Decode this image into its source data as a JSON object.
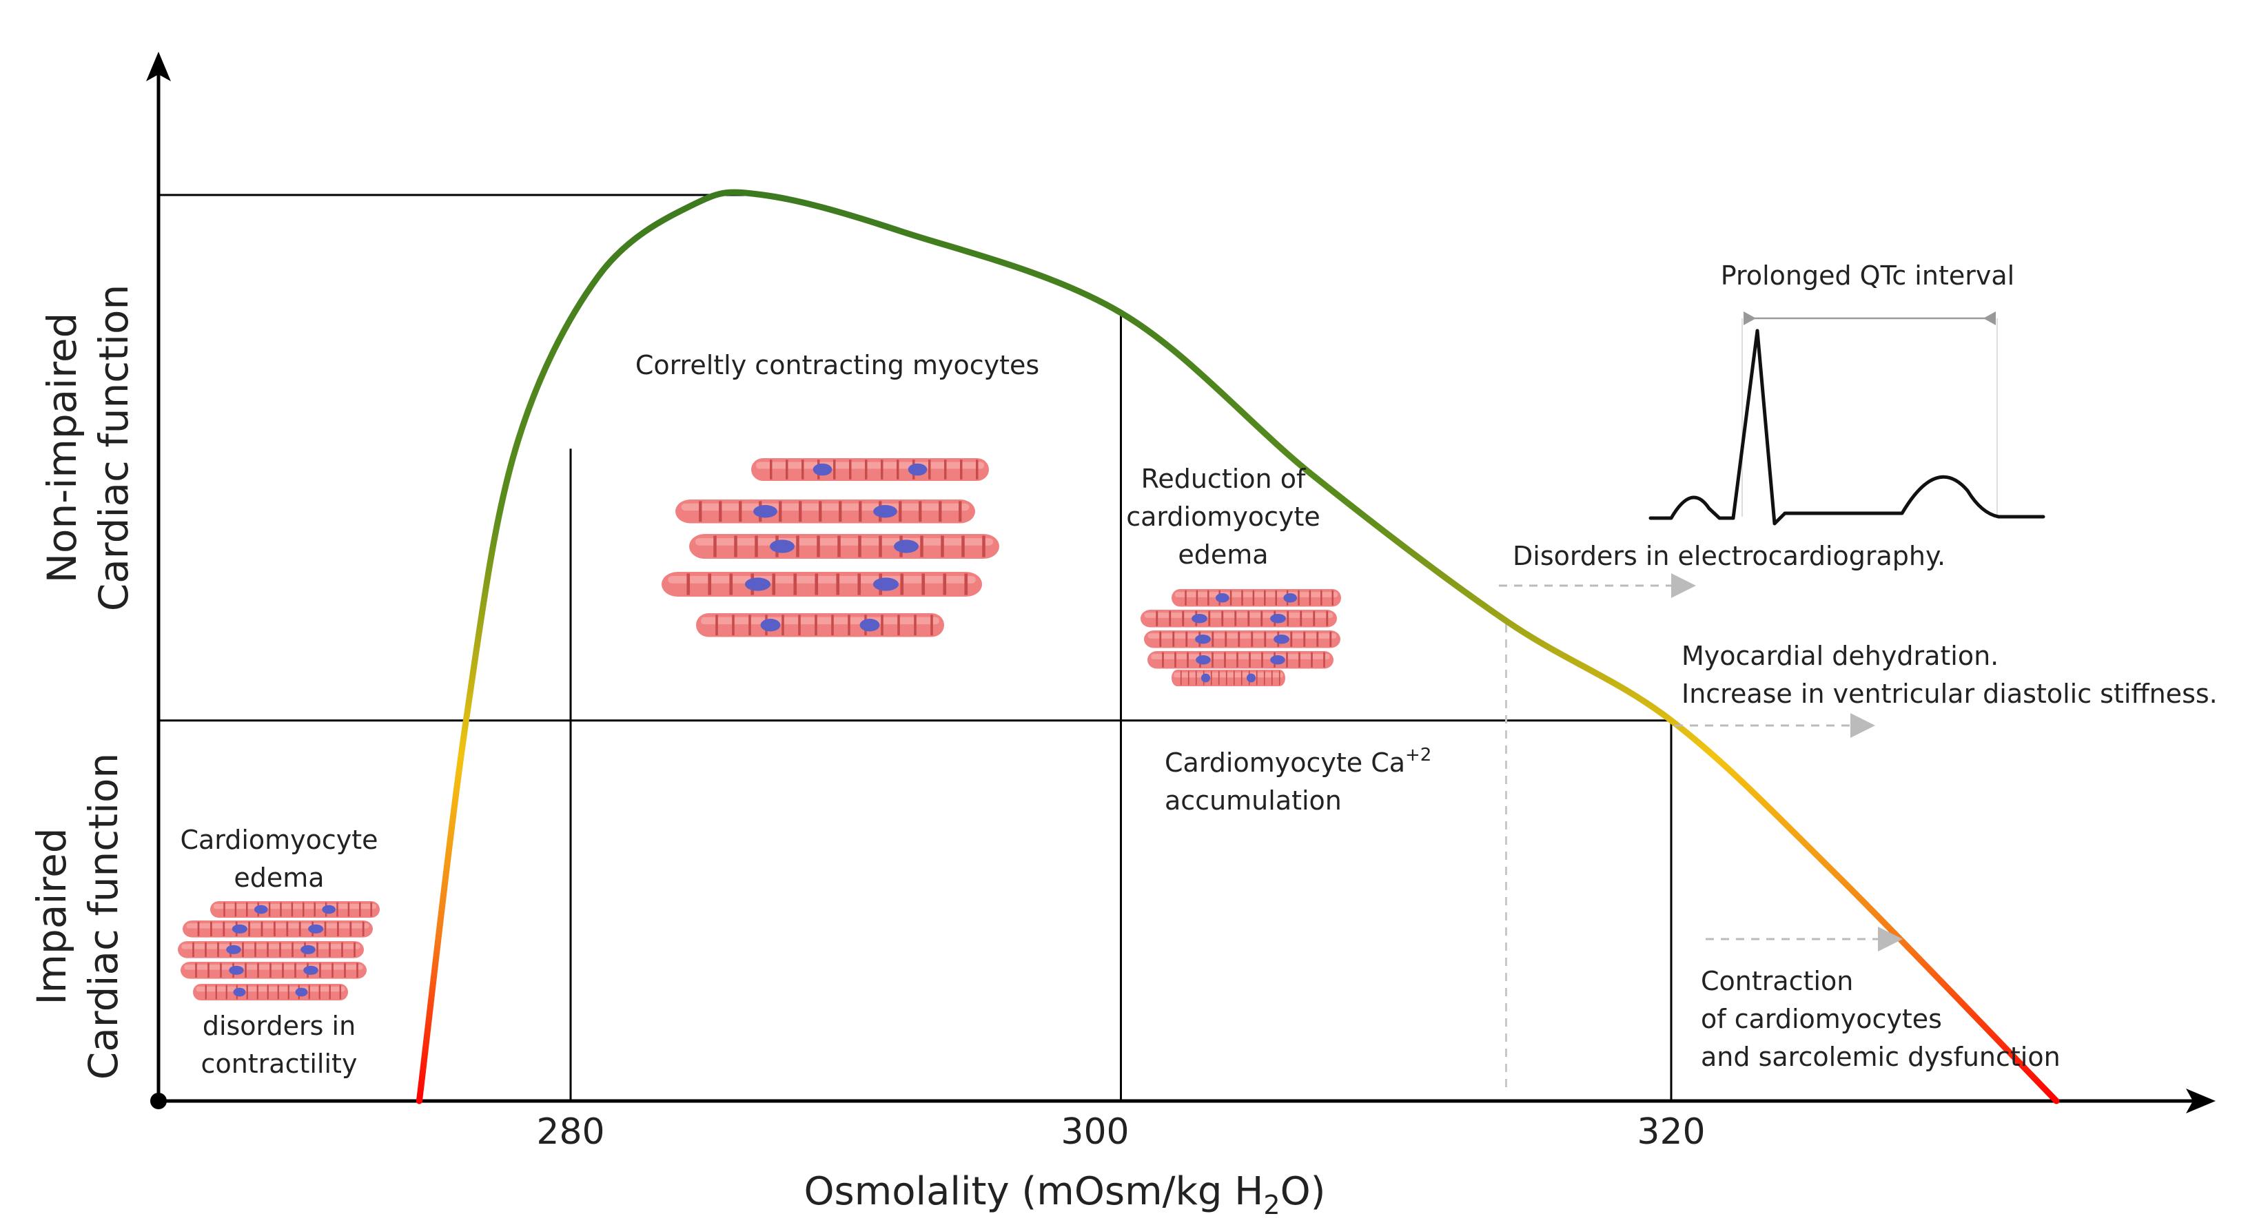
{
  "chart_data": {
    "type": "line",
    "title": "",
    "xlabel": "Osmolality (mOsm/kg H",
    "xlabel_subscript": "2",
    "xlabel_tail": "O)",
    "x_ticks": [
      "280",
      "300",
      "320"
    ],
    "y_labels": {
      "upper_line1": "Non-impaired",
      "upper_line2": "Cardiac function",
      "lower_line1": "Impaired",
      "lower_line2": "Cardiac function"
    },
    "curve_points": [
      {
        "x": 274.5,
        "y": 0.0
      },
      {
        "x": 276.2,
        "y": 0.42
      },
      {
        "x": 278.0,
        "y": 0.72
      },
      {
        "x": 281.0,
        "y": 0.91
      },
      {
        "x": 284.5,
        "y": 0.99
      },
      {
        "x": 287.0,
        "y": 1.0
      },
      {
        "x": 292.0,
        "y": 0.96
      },
      {
        "x": 300.0,
        "y": 0.87
      },
      {
        "x": 307.0,
        "y": 0.69
      },
      {
        "x": 314.0,
        "y": 0.53
      },
      {
        "x": 320.0,
        "y": 0.42
      },
      {
        "x": 326.0,
        "y": 0.25
      },
      {
        "x": 334.0,
        "y": 0.0
      }
    ],
    "threshold_y": 0.42,
    "gradient_colors": {
      "top": "#3a7d22",
      "middle": "#f1c40f",
      "bottom": "#ff0000"
    },
    "annotations": {
      "correctly": "Correltly contracting myocytes",
      "reduction_1": "Reduction of",
      "reduction_2": "cardiomyocyte",
      "reduction_3": "edema",
      "edema_1": "Cardiomyocyte",
      "edema_2": "edema",
      "disorders_1": "disorders in",
      "disorders_2": "contractility",
      "calcium_1": "Cardiomyocyte Ca",
      "calcium_sup": "+2",
      "calcium_2": "accumulation",
      "qtc": "Prolonged QTc interval",
      "ecg_disorders": "Disorders in electrocardiography.",
      "dehydration_1": "Myocardial dehydration.",
      "dehydration_2": "Increase in ventricular diastolic stiffness.",
      "contraction_1": "Contraction",
      "contraction_2": "of cardiomyocytes",
      "contraction_3": "and sarcolemic dysfunction"
    }
  }
}
